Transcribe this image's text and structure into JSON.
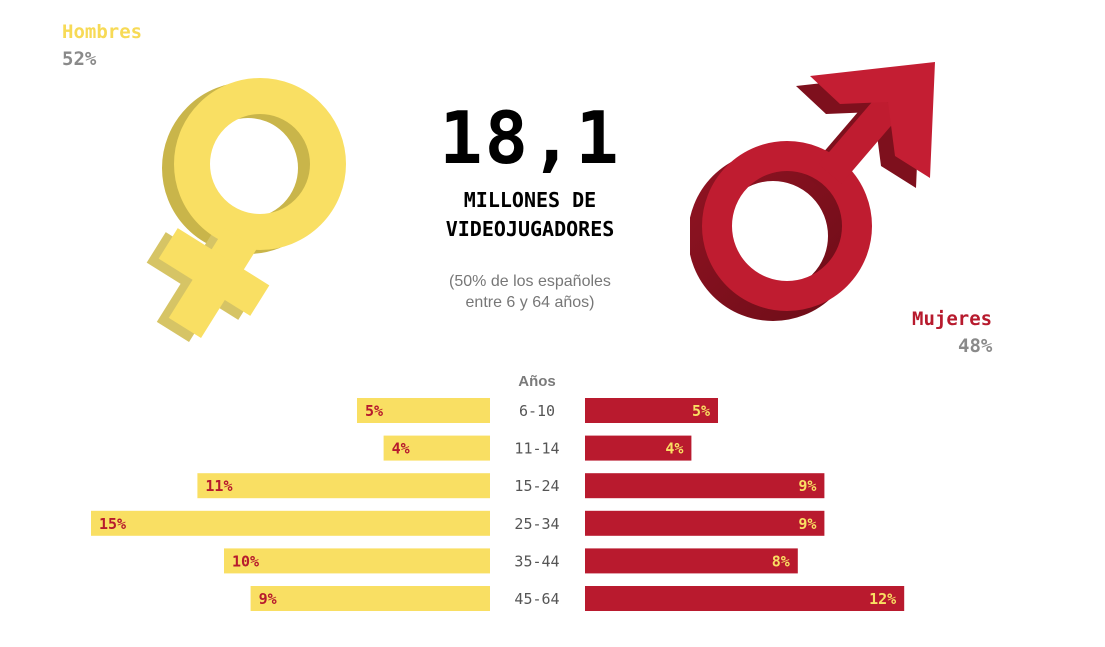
{
  "hombres": {
    "label": "Hombres",
    "percent": "52%",
    "color": "#f7da56",
    "icon": "venus-symbol-icon"
  },
  "mujeres": {
    "label": "Mujeres",
    "percent": "48%",
    "color": "#b71a2d",
    "icon": "mars-symbol-icon"
  },
  "headline": {
    "number": "18,1",
    "line1": "MILLONES DE",
    "line2": "VIDEOJUGADORES",
    "sub1": "(50% de los españoles",
    "sub2": "entre 6 y 64 años)"
  },
  "chart_data": {
    "type": "bar",
    "orientation": "horizontal-diverging",
    "axis_title": "Años",
    "categories": [
      "6-10",
      "11-14",
      "15-24",
      "25-34",
      "35-44",
      "45-64"
    ],
    "series": [
      {
        "name": "Hombres",
        "values": [
          5,
          4,
          11,
          15,
          10,
          9
        ],
        "labels": [
          "5%",
          "4%",
          "11%",
          "15%",
          "10%",
          "9%"
        ],
        "color": "#f9df63",
        "label_color": "#b71a2d"
      },
      {
        "name": "Mujeres",
        "values": [
          5,
          4,
          9,
          9,
          8,
          12
        ],
        "labels": [
          "5%",
          "4%",
          "9%",
          "9%",
          "8%",
          "12%"
        ],
        "color": "#b91a2e",
        "label_color": "#f9df63"
      }
    ]
  }
}
